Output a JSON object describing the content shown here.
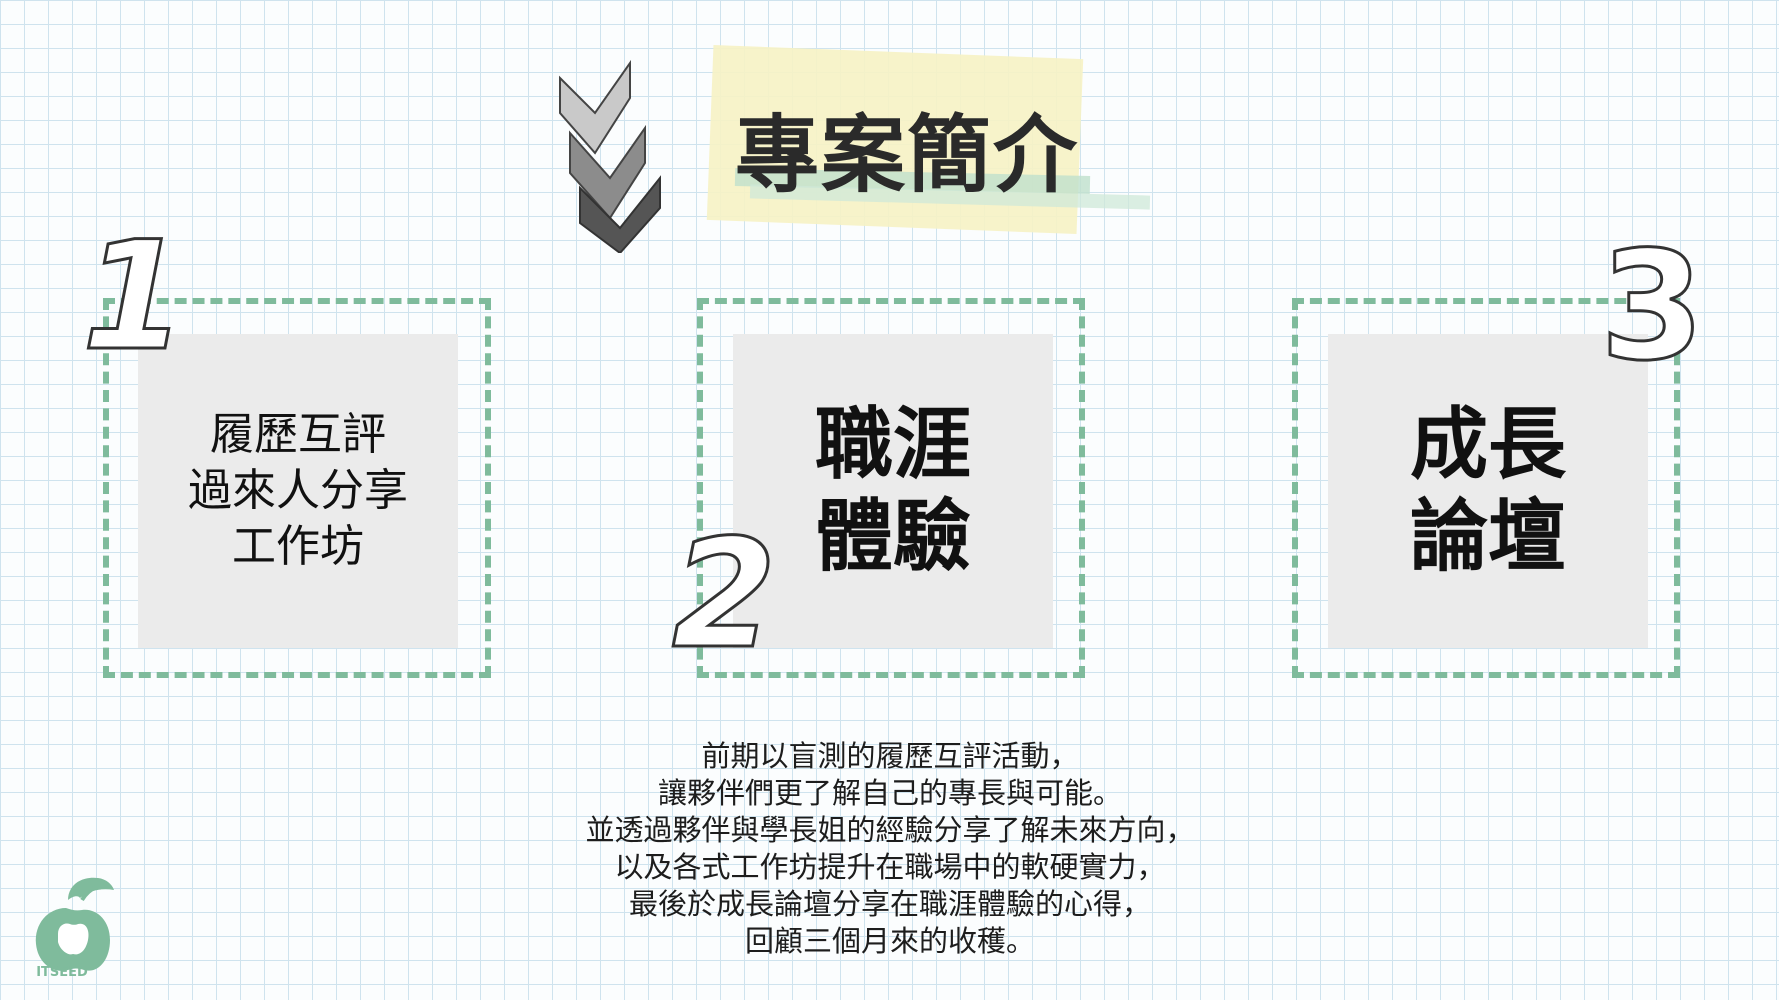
{
  "title": "專案簡介",
  "items": [
    {
      "number": "1",
      "label_lines": [
        "履歷互評",
        "過來人分享",
        "工作坊"
      ]
    },
    {
      "number": "2",
      "label_lines": [
        "職涯",
        "體驗"
      ]
    },
    {
      "number": "3",
      "label_lines": [
        "成長",
        "論壇"
      ]
    }
  ],
  "description_lines": [
    "前期以盲測的履歷互評活動，",
    "讓夥伴們更了解自己的專長與可能。",
    "並透過夥伴與學長姐的經驗分享了解未來方向，",
    "以及各式工作坊提升在職場中的軟硬實力，",
    "最後於成長論壇分享在職涯體驗的心得，",
    "回顧三個月來的收穫。"
  ],
  "logo_text": "ITSEED",
  "colors": {
    "accent_green": "#7fbb9c",
    "panel_gray": "#ebebeb",
    "highlight_yellow": "#f6f2c4"
  }
}
